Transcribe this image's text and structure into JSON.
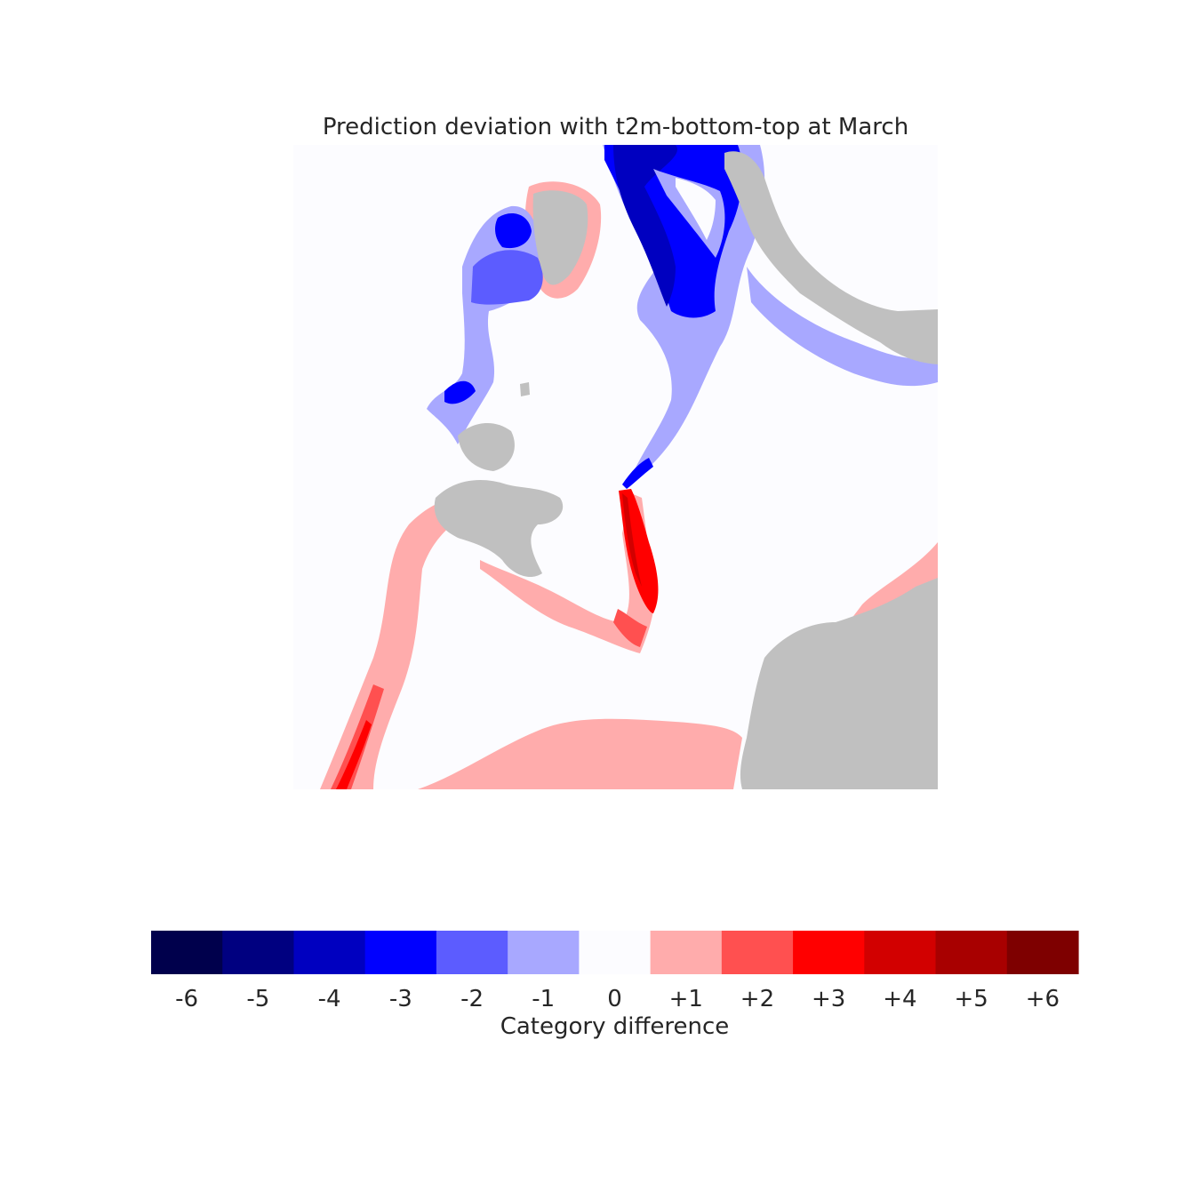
{
  "title": "Prediction deviation with t2m-bottom-top at March",
  "chart_data": {
    "type": "heatmap",
    "title": "Prediction deviation with t2m-bottom-top at March",
    "colorbar": {
      "label": "Category difference",
      "categories": [
        {
          "value": -6,
          "label": "-6",
          "color": "#00004c"
        },
        {
          "value": -5,
          "label": "-5",
          "color": "#000080"
        },
        {
          "value": -4,
          "label": "-4",
          "color": "#0000c0"
        },
        {
          "value": -3,
          "label": "-3",
          "color": "#0000ff"
        },
        {
          "value": -2,
          "label": "-2",
          "color": "#5c5cff"
        },
        {
          "value": -1,
          "label": "-1",
          "color": "#a8a8ff"
        },
        {
          "value": 0,
          "label": "0",
          "color": "#fcfcff"
        },
        {
          "value": 1,
          "label": "+1",
          "color": "#ffacac"
        },
        {
          "value": 2,
          "label": "+2",
          "color": "#ff5050"
        },
        {
          "value": 3,
          "label": "+3",
          "color": "#ff0000"
        },
        {
          "value": 4,
          "label": "+4",
          "color": "#d20000"
        },
        {
          "value": 5,
          "label": "+5",
          "color": "#a80000"
        },
        {
          "value": 6,
          "label": "+6",
          "color": "#7e0000"
        }
      ]
    },
    "land_color": "#c0c0c0",
    "axes_visible": false
  }
}
